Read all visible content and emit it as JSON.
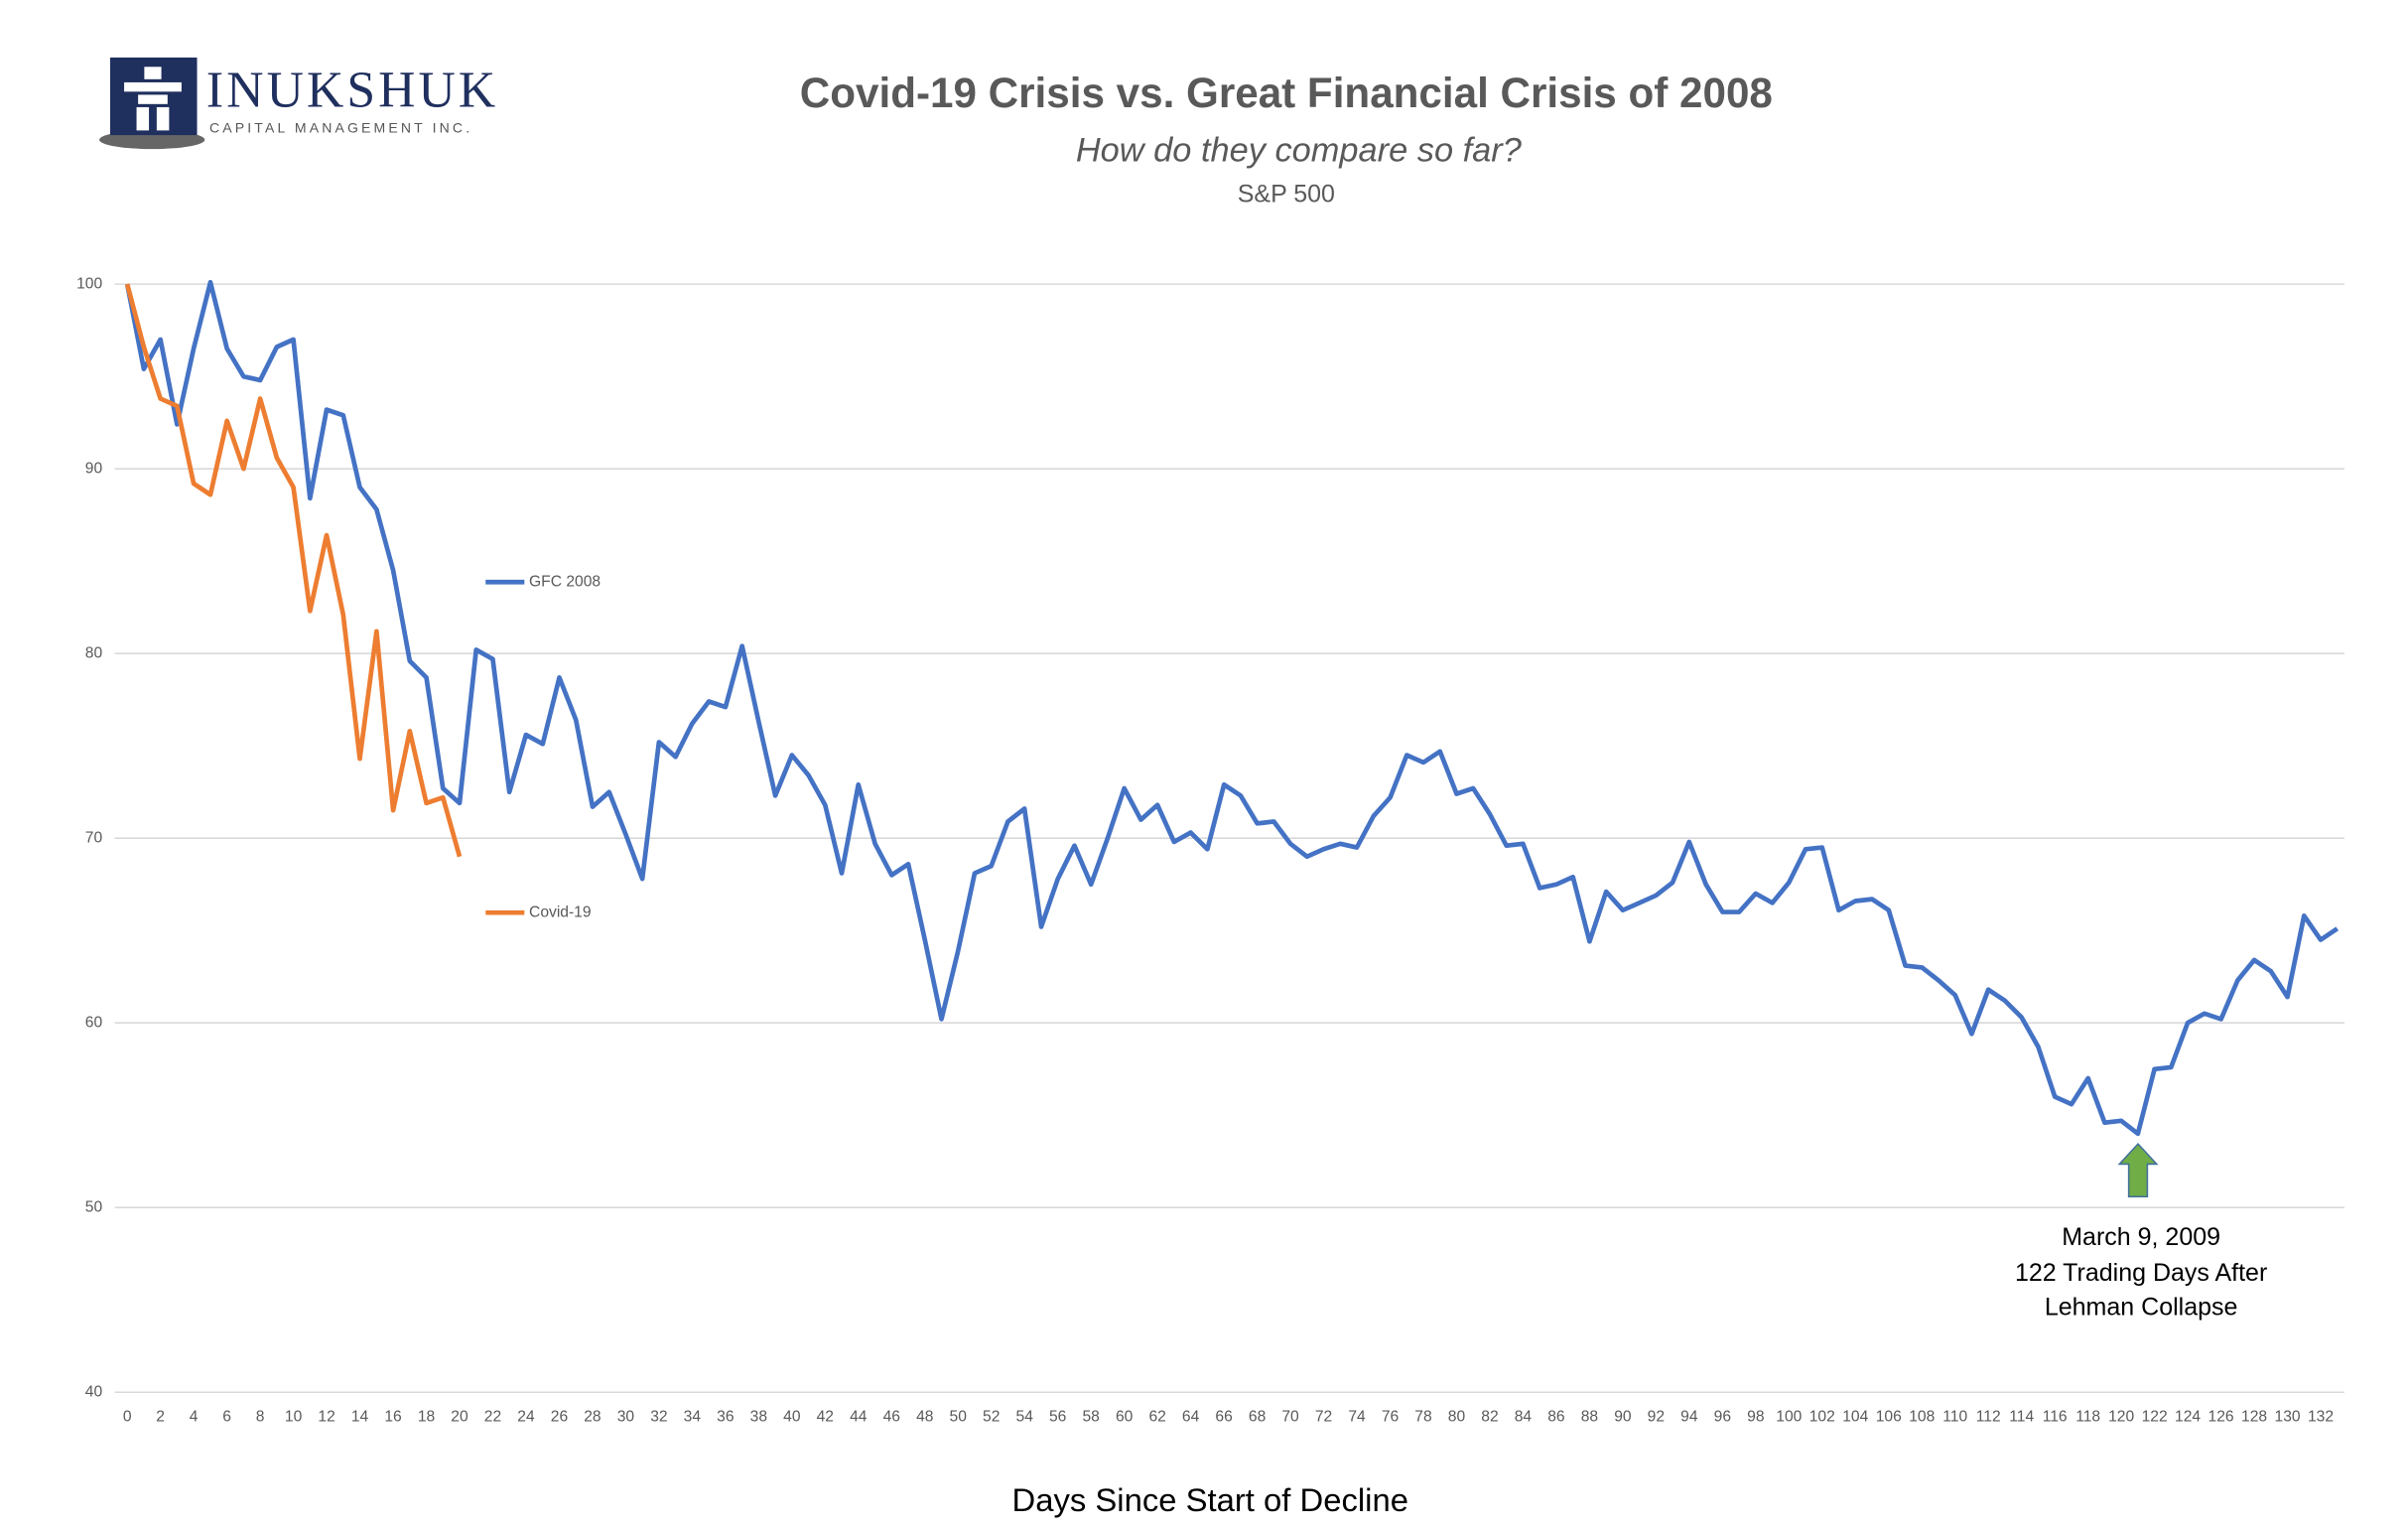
{
  "logo": {
    "name": "INUKSHUK",
    "tagline": "CAPITAL MANAGEMENT INC."
  },
  "chart_data": {
    "type": "line",
    "title": "Covid-19 Crisis vs. Great Financial Crisis of 2008",
    "subtitle": "How do they compare so far?",
    "subtitle2": "S&P 500",
    "xlabel": "Days Since Start of Decline",
    "annotation": [
      "March 9, 2009",
      "122 Trading Days After",
      "Lehman Collapse"
    ],
    "categories": [
      0,
      null,
      2,
      null,
      4,
      null,
      6,
      null,
      8,
      null,
      10,
      null,
      12,
      null,
      14,
      null,
      16,
      null,
      18,
      null,
      20,
      null,
      22,
      null,
      24,
      null,
      26,
      null,
      28,
      null,
      30,
      null,
      32,
      null,
      34,
      null,
      36,
      null,
      38,
      null,
      40,
      null,
      42,
      null,
      44,
      null,
      46,
      null,
      48,
      null,
      50,
      null,
      52,
      null,
      54,
      null,
      56,
      null,
      58,
      null,
      60,
      null,
      62,
      null,
      64,
      null,
      66,
      null,
      68,
      null,
      70,
      null,
      72,
      null,
      74,
      null,
      76,
      null,
      78,
      null,
      80,
      null,
      82,
      null,
      84,
      null,
      86,
      null,
      88,
      null,
      90,
      null,
      92,
      null,
      94,
      null,
      96,
      null,
      98,
      null,
      100,
      null,
      102,
      null,
      104,
      null,
      106,
      null,
      108,
      null,
      110,
      null,
      112,
      null,
      114,
      null,
      116,
      null,
      118,
      null,
      120,
      null,
      122,
      null,
      124,
      null,
      126,
      null,
      128,
      null,
      130,
      null,
      132,
      null
    ],
    "series": [
      {
        "name": "GFC 2008",
        "color": "#4472c4",
        "values": [
          100,
          95.4,
          97,
          92.4,
          96.5,
          100.1,
          96.5,
          95.0,
          94.8,
          96.6,
          97.0,
          88.4,
          93.2,
          92.9,
          89.0,
          87.8,
          84.5,
          79.6,
          78.7,
          72.7,
          71.9,
          80.2,
          79.7,
          72.5,
          75.6,
          75.1,
          78.7,
          76.4,
          71.7,
          72.5,
          70.2,
          67.8,
          75.2,
          74.4,
          76.2,
          77.4,
          77.1,
          80.4,
          76.3,
          72.3,
          74.5,
          73.4,
          71.8,
          68.1,
          72.9,
          69.7,
          68.0,
          68.6,
          64.5,
          60.2,
          63.9,
          68.1,
          68.5,
          70.9,
          71.6,
          65.2,
          67.8,
          69.6,
          67.5,
          70.0,
          72.7,
          71.0,
          71.8,
          69.8,
          70.3,
          69.4,
          72.9,
          72.3,
          70.8,
          70.9,
          69.7,
          69.0,
          69.4,
          69.7,
          69.5,
          71.2,
          72.2,
          74.5,
          74.1,
          74.7,
          72.4,
          72.7,
          71.3,
          69.6,
          69.7,
          67.3,
          67.5,
          67.9,
          64.4,
          67.1,
          66.1,
          66.5,
          66.9,
          67.6,
          69.8,
          67.5,
          66.0,
          66.0,
          67.0,
          66.5,
          67.6,
          69.4,
          69.5,
          66.1,
          66.6,
          66.7,
          66.1,
          63.1,
          63.0,
          62.3,
          61.5,
          59.4,
          61.8,
          61.2,
          60.3,
          58.7,
          56.0,
          55.6,
          57.0,
          54.6,
          54.7,
          54.0,
          57.5,
          57.6,
          60.0,
          60.5,
          60.2,
          62.3,
          63.4,
          62.8,
          61.4,
          65.8,
          64.5,
          65.1
        ]
      },
      {
        "name": "Covid-19",
        "color": "#ed7d31",
        "values": [
          100,
          96.6,
          93.8,
          93.4,
          89.2,
          88.6,
          92.6,
          90.0,
          93.8,
          90.6,
          89.0,
          82.3,
          86.4,
          82.1,
          74.3,
          81.2,
          71.5,
          75.8,
          71.9,
          72.2,
          69.0,
          null,
          null,
          null,
          null,
          null,
          null,
          null,
          null,
          null,
          null,
          null,
          null,
          null,
          null,
          null,
          null,
          null,
          null,
          null,
          null,
          null,
          null,
          null,
          null,
          null,
          null,
          null,
          null,
          null,
          null,
          null,
          null,
          null,
          null,
          null,
          null,
          null,
          null,
          null,
          null,
          null,
          null,
          null,
          null,
          null,
          null,
          null,
          null,
          null,
          null,
          null,
          null,
          null,
          null,
          null,
          null,
          null,
          null,
          null,
          null,
          null,
          null,
          null,
          null,
          null,
          null,
          null,
          null,
          null,
          null,
          null,
          null,
          null,
          null,
          null,
          null,
          null,
          null,
          null,
          null,
          null,
          null,
          null,
          null,
          null,
          null,
          null,
          null,
          null,
          null,
          null,
          null,
          null,
          null,
          null,
          null,
          null,
          null,
          null,
          null,
          null,
          null,
          null,
          null,
          null,
          null,
          null,
          null,
          null,
          null,
          null,
          null,
          null
        ]
      }
    ],
    "ylim": [
      40,
      100
    ],
    "yticks": [
      40,
      50,
      60,
      70,
      80,
      90,
      100
    ],
    "grid": true
  }
}
